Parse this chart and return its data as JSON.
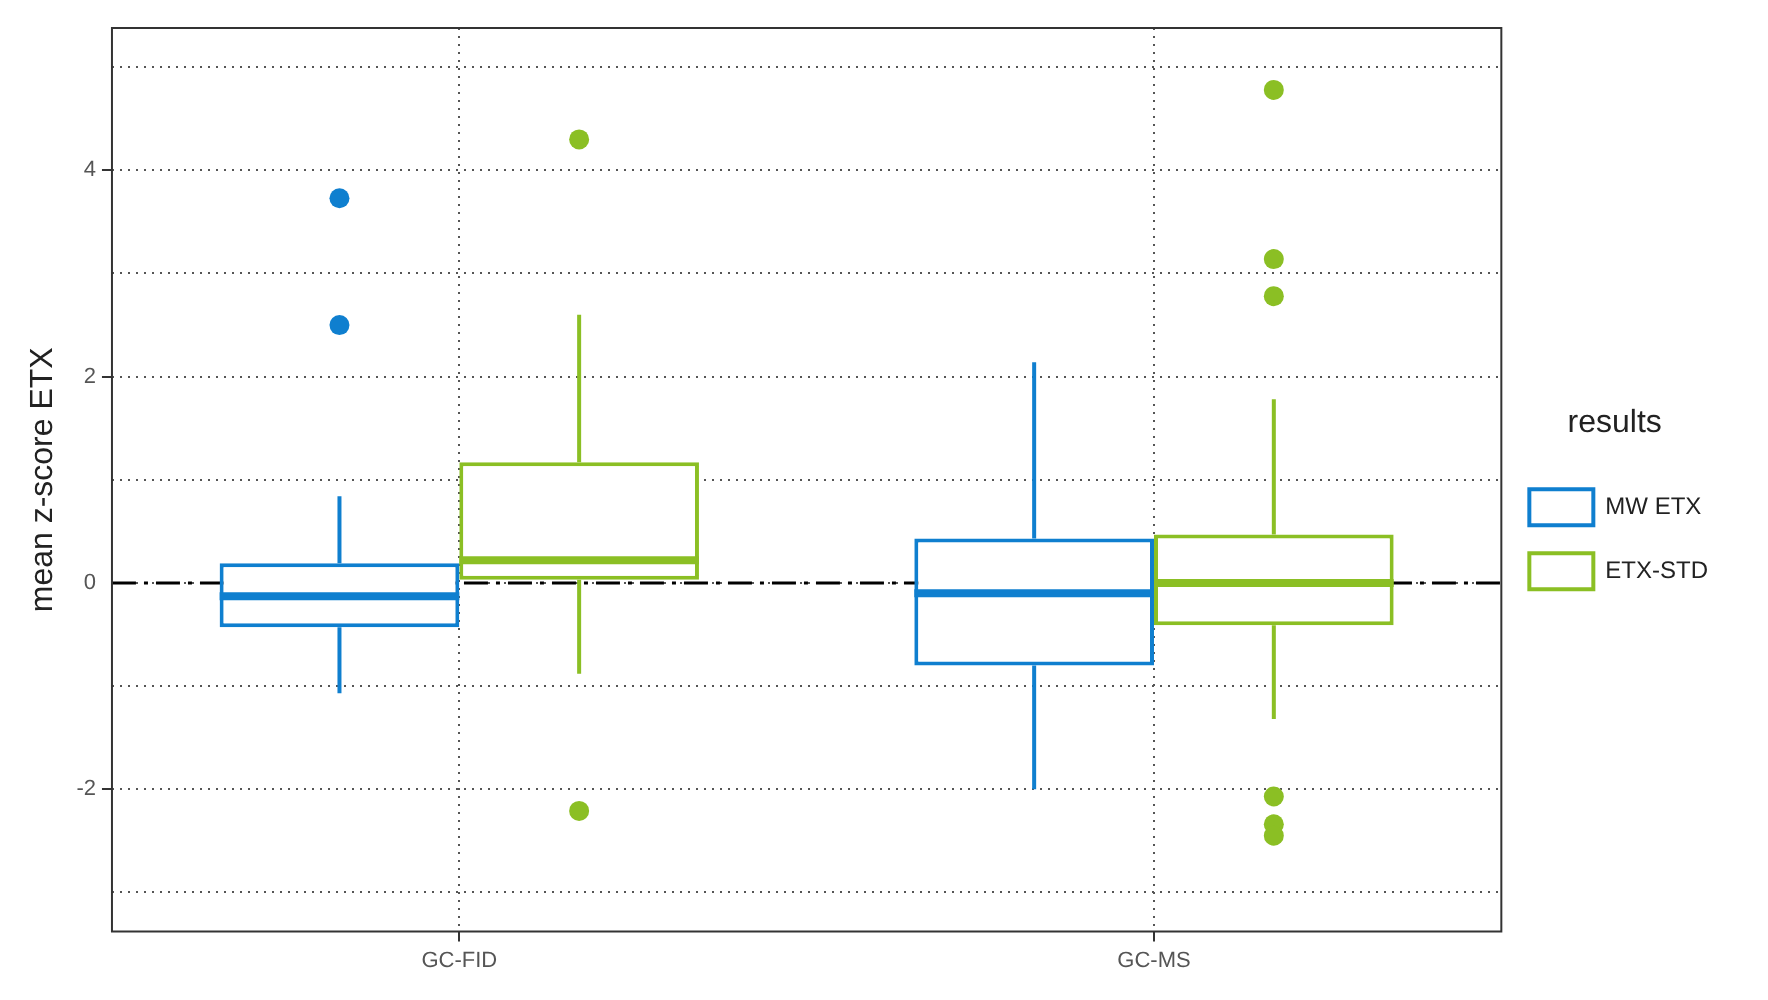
{
  "chart_data": {
    "type": "box",
    "ylabel": "mean z-score ETX",
    "legend_title": "results",
    "categories": [
      "GC-FID",
      "GC-MS"
    ],
    "series": [
      {
        "name": "MW ETX",
        "color": "#0f7fcf",
        "boxes": [
          {
            "low": -1.07,
            "q1": -0.43,
            "median": -0.13,
            "q3": 0.19,
            "high": 0.84,
            "outliers": [
              3.73,
              2.5
            ]
          },
          {
            "low": -2.0,
            "q1": -0.8,
            "median": -0.1,
            "q3": 0.43,
            "high": 2.14
          }
        ]
      },
      {
        "name": "ETX-STD",
        "color": "#8bbf24",
        "boxes": [
          {
            "low": -0.88,
            "q1": 0.03,
            "median": 0.22,
            "q3": 1.17,
            "high": 2.6,
            "outliers": [
              4.3,
              -2.21
            ]
          },
          {
            "low": -1.32,
            "q1": -0.41,
            "median": 0,
            "q3": 0.47,
            "high": 1.78,
            "outliers": [
              4.78,
              3.14,
              2.78,
              -2.07,
              -2.34,
              -2.45
            ]
          }
        ]
      }
    ],
    "ylim": [
      -3.38,
      5.38
    ],
    "yticks": [
      {
        "value": -3,
        "label": null
      },
      -2,
      {
        "value": -1,
        "label": null
      },
      0,
      {
        "value": 1,
        "label": null
      },
      2,
      {
        "value": 3,
        "label": null
      },
      4,
      {
        "value": 5,
        "label": null
      }
    ],
    "ref_lines": [
      {
        "axis": "y",
        "value": 0,
        "color": "#000000",
        "line_style": "dashdot"
      }
    ],
    "grid": true,
    "legend": "right"
  }
}
